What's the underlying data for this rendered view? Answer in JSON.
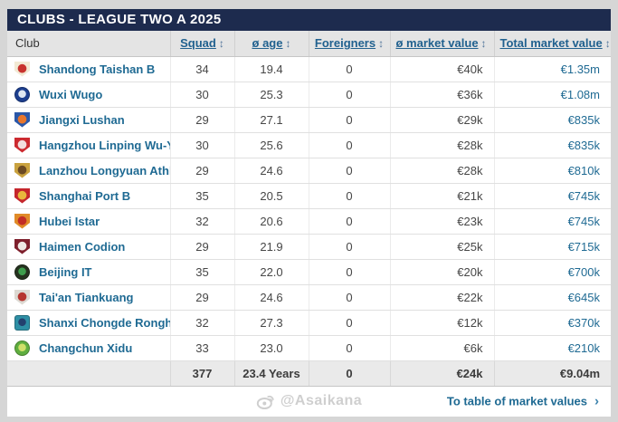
{
  "title": "CLUBS - LEAGUE TWO A 2025",
  "colors": {
    "titlebar_bg": "#1d2b4e",
    "link_blue": "#1f6a93",
    "header_bg": "#e4e4e4",
    "footer_bg": "#eaeaea",
    "page_bg": "#d6d6d6",
    "watermark_gray": "#cfcfcf"
  },
  "table": {
    "columns": [
      {
        "label": "Club",
        "sortable": false
      },
      {
        "label": "Squad",
        "sortable": true,
        "sort_icon": "↕"
      },
      {
        "label": "ø age",
        "sortable": true,
        "sort_icon": "↕"
      },
      {
        "label": "Foreigners",
        "sortable": true,
        "sort_icon": "↕"
      },
      {
        "label": "ø market value",
        "sortable": true,
        "sort_icon": "↕"
      },
      {
        "label": "Total market value",
        "sortable": true,
        "sort_icon": "↕"
      }
    ],
    "rows": [
      {
        "club": "Shandong Taishan B",
        "squad": "34",
        "avg_age": "19.4",
        "foreigners": "0",
        "avg_market_value": "€40k",
        "total_market_value": "€1.35m",
        "crest": {
          "shape": "shield",
          "primary": "#f2e9d4",
          "secondary": "#c8332e"
        }
      },
      {
        "club": "Wuxi Wugo",
        "squad": "30",
        "avg_age": "25.3",
        "foreigners": "0",
        "avg_market_value": "€36k",
        "total_market_value": "€1.08m",
        "crest": {
          "shape": "circle",
          "primary": "#1d3f8f",
          "secondary": "#dfe7f2"
        }
      },
      {
        "club": "Jiangxi Lushan",
        "squad": "29",
        "avg_age": "27.1",
        "foreigners": "0",
        "avg_market_value": "€29k",
        "total_market_value": "€835k",
        "crest": {
          "shape": "shield",
          "primary": "#2a57a8",
          "secondary": "#e8762c"
        }
      },
      {
        "club": "Hangzhou Linping Wu-Yue",
        "squad": "30",
        "avg_age": "25.6",
        "foreigners": "0",
        "avg_market_value": "€28k",
        "total_market_value": "€835k",
        "crest": {
          "shape": "shield",
          "primary": "#cc2a30",
          "secondary": "#f3dede"
        }
      },
      {
        "club": "Lanzhou Longyuan Athletic",
        "squad": "29",
        "avg_age": "24.6",
        "foreigners": "0",
        "avg_market_value": "€28k",
        "total_market_value": "€810k",
        "crest": {
          "shape": "shield",
          "primary": "#c9a23f",
          "secondary": "#6b4a23"
        }
      },
      {
        "club": "Shanghai Port B",
        "squad": "35",
        "avg_age": "20.5",
        "foreigners": "0",
        "avg_market_value": "€21k",
        "total_market_value": "€745k",
        "crest": {
          "shape": "shield",
          "primary": "#c5262c",
          "secondary": "#e9b83c"
        }
      },
      {
        "club": "Hubei Istar",
        "squad": "32",
        "avg_age": "20.6",
        "foreigners": "0",
        "avg_market_value": "€23k",
        "total_market_value": "€745k",
        "crest": {
          "shape": "shield",
          "primary": "#e08b28",
          "secondary": "#c22d26"
        }
      },
      {
        "club": "Haimen Codion",
        "squad": "29",
        "avg_age": "21.9",
        "foreigners": "0",
        "avg_market_value": "€25k",
        "total_market_value": "€715k",
        "crest": {
          "shape": "shield",
          "primary": "#7e1f2c",
          "secondary": "#efe8e4"
        }
      },
      {
        "club": "Beijing IT",
        "squad": "35",
        "avg_age": "22.0",
        "foreigners": "0",
        "avg_market_value": "€20k",
        "total_market_value": "€700k",
        "crest": {
          "shape": "circle",
          "primary": "#26321f",
          "secondary": "#3f9e4d"
        }
      },
      {
        "club": "Tai'an Tiankuang",
        "squad": "29",
        "avg_age": "24.6",
        "foreigners": "0",
        "avg_market_value": "€22k",
        "total_market_value": "€645k",
        "crest": {
          "shape": "shield",
          "primary": "#dcd9d2",
          "secondary": "#b5342e"
        }
      },
      {
        "club": "Shanxi Chongde Ronghai",
        "squad": "32",
        "avg_age": "27.3",
        "foreigners": "0",
        "avg_market_value": "€12k",
        "total_market_value": "€370k",
        "crest": {
          "shape": "square",
          "primary": "#2e8fa5",
          "secondary": "#23406e"
        }
      },
      {
        "club": "Changchun Xidu",
        "squad": "33",
        "avg_age": "23.0",
        "foreigners": "0",
        "avg_market_value": "€6k",
        "total_market_value": "€210k",
        "crest": {
          "shape": "circle",
          "primary": "#5fae3f",
          "secondary": "#cfe06a"
        }
      }
    ],
    "footer": {
      "club": "",
      "squad": "377",
      "avg_age": "23.4 Years",
      "foreigners": "0",
      "avg_market_value": "€24k",
      "total_market_value": "€9.04m"
    }
  },
  "bottom": {
    "watermark": "@Asaikana",
    "link_label": "To table of market values",
    "chevron": "›"
  }
}
